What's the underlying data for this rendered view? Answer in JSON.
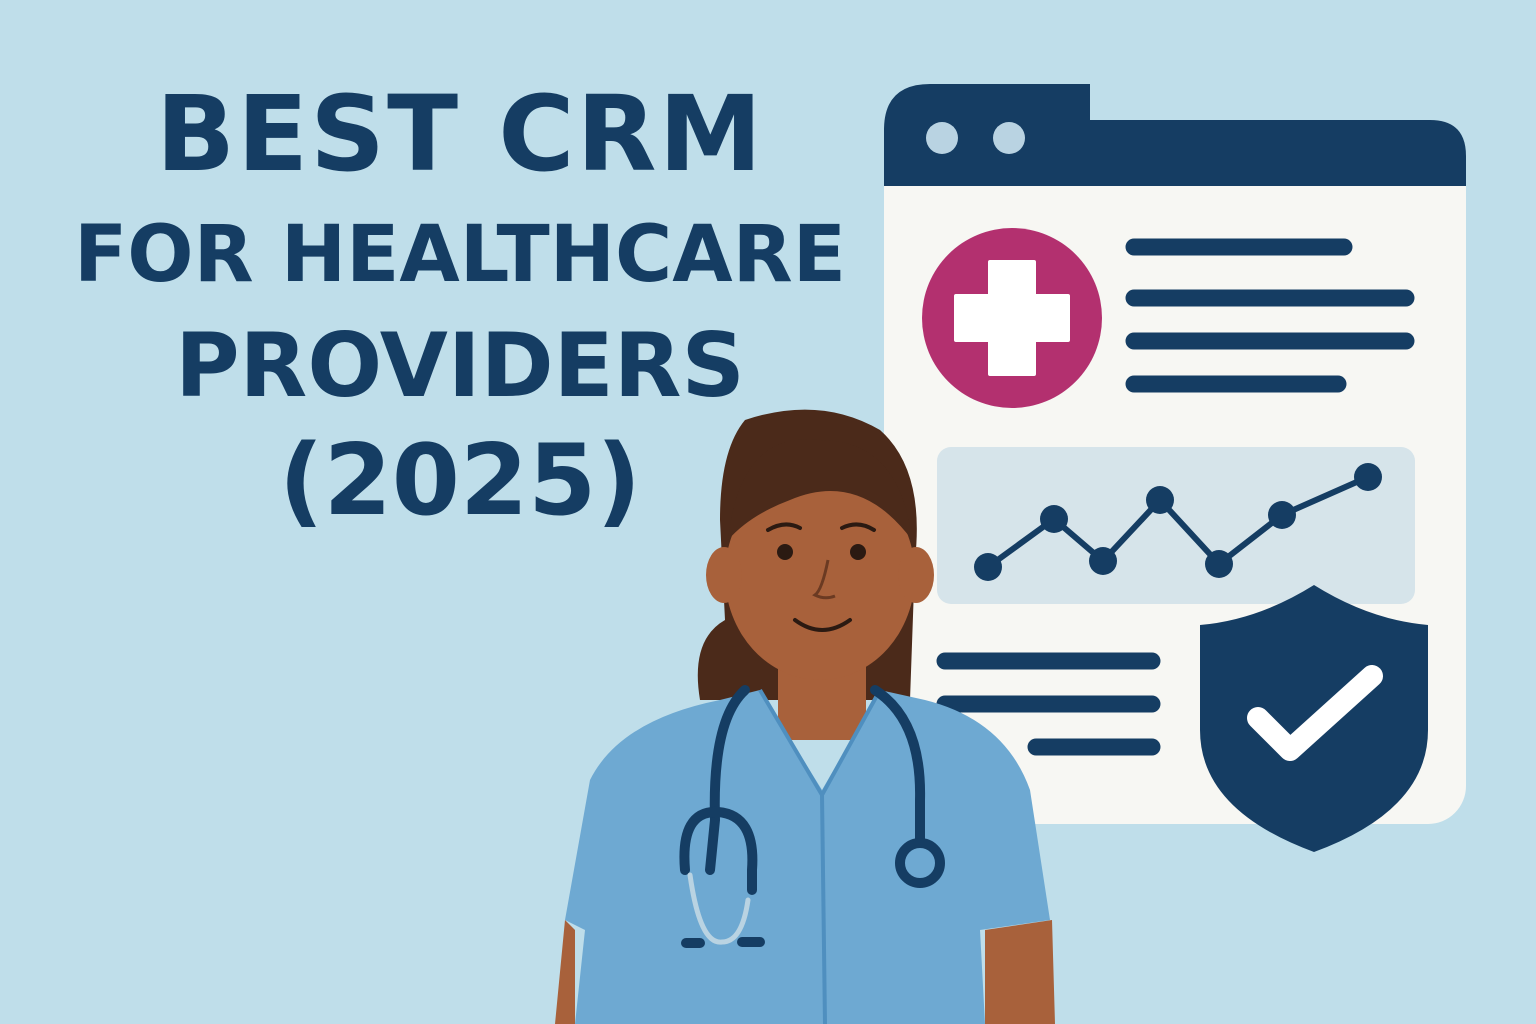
{
  "title": {
    "line1": "BEST CRM",
    "line2": "FOR HEALTHCARE",
    "line3": "PROVIDERS",
    "line4": "(2025)"
  },
  "colors": {
    "background": "#bfdeea",
    "navy": "#153d63",
    "magenta": "#b3306f",
    "window": "#f7f7f3",
    "chart_panel": "#d6e4ea",
    "scrubs": "#6ea9d2",
    "skin": "#a8613b",
    "hair": "#4b2a1a"
  },
  "icons": [
    "medical-cross-icon",
    "shield-check-icon",
    "line-chart-icon",
    "stethoscope-icon"
  ]
}
